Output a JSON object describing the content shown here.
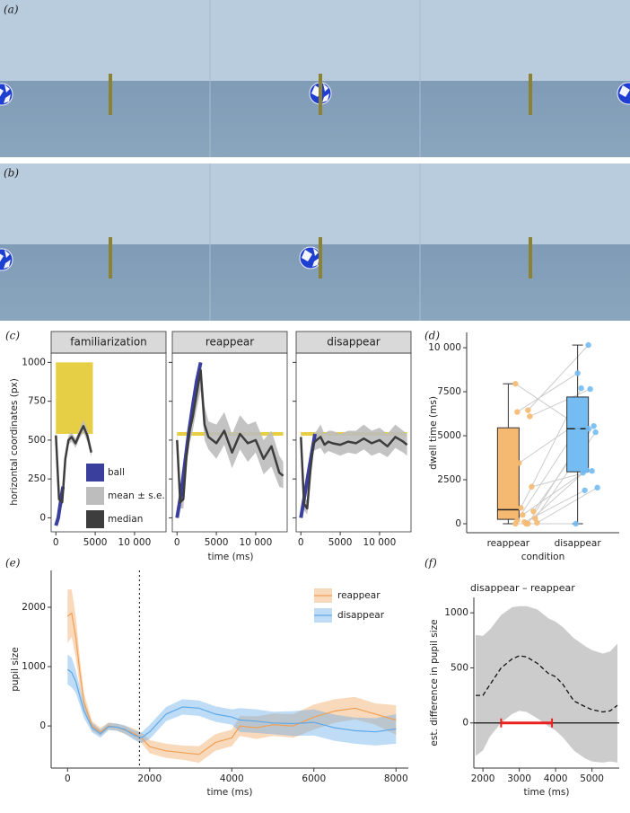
{
  "figure": {
    "panel_labels": [
      "(a)",
      "(b)",
      "(c)",
      "(d)",
      "(e)",
      "(f)"
    ]
  },
  "chart_data": [
    {
      "type": "facet-line",
      "ylabel": "horizontal coordinates (px)",
      "xlabel": "time (ms)",
      "xlim": [
        -600,
        14000
      ],
      "ylim": [
        -90,
        1060
      ],
      "xticks": [
        0,
        5000,
        {
          "value": 10000,
          "label": "10 000"
        }
      ],
      "yticks": [
        0,
        250,
        500,
        750,
        1000
      ],
      "series": [
        {
          "name": "ball",
          "color": "#3a3f9e"
        },
        {
          "name": "mean ± s.e.",
          "color": "#bdbdbd"
        },
        {
          "name": "median",
          "color": "#3d3d3d"
        }
      ],
      "legend": "bottom-right",
      "occluder_color": "#e6cf45",
      "facets": [
        {
          "title": "familiarization",
          "x": [
            0,
            400,
            800,
            1200,
            1600,
            2000,
            2500,
            3000,
            3500,
            4000,
            4500
          ],
          "median": [
            530,
            120,
            100,
            380,
            500,
            520,
            480,
            540,
            590,
            530,
            420
          ],
          "lower": [
            500,
            90,
            70,
            340,
            470,
            490,
            450,
            510,
            550,
            490,
            390
          ],
          "upper": [
            560,
            150,
            130,
            420,
            530,
            550,
            510,
            570,
            630,
            570,
            450
          ],
          "ball": {
            "x": [
              0,
              300,
              600,
              900
            ],
            "values": [
              -50,
              0,
              100,
              200
            ]
          },
          "occluder": {
            "x": [
              0,
              4700
            ],
            "y": [
              540,
              1000
            ]
          }
        },
        {
          "title": "reappear",
          "x": [
            0,
            400,
            800,
            1200,
            1600,
            2000,
            2500,
            3000,
            3500,
            4000,
            5000,
            6000,
            7000,
            8000,
            9000,
            10000,
            11000,
            12000,
            13000,
            13500
          ],
          "median": [
            500,
            100,
            120,
            400,
            560,
            650,
            800,
            950,
            600,
            520,
            480,
            560,
            420,
            540,
            480,
            500,
            380,
            460,
            290,
            270
          ],
          "lower": [
            440,
            60,
            60,
            330,
            480,
            560,
            700,
            820,
            500,
            440,
            380,
            470,
            320,
            440,
            360,
            420,
            280,
            330,
            200,
            190
          ],
          "upper": [
            560,
            160,
            180,
            470,
            640,
            740,
            900,
            1000,
            720,
            620,
            600,
            680,
            540,
            660,
            600,
            620,
            500,
            560,
            400,
            360
          ],
          "ball": {
            "x": [
              0,
              500,
              1000,
              1500,
              2000,
              2500,
              3000
            ],
            "values": [
              0,
              150,
              350,
              550,
              720,
              880,
              1000
            ]
          },
          "occluder": {
            "x": [
              0,
              13500
            ],
            "y": [
              540,
              540
            ]
          }
        },
        {
          "title": "disappear",
          "x": [
            0,
            400,
            800,
            1200,
            1600,
            2000,
            2500,
            3000,
            3500,
            4000,
            5000,
            6000,
            7000,
            8000,
            9000,
            10000,
            11000,
            12000,
            13000,
            13500
          ],
          "median": [
            520,
            90,
            60,
            300,
            480,
            500,
            520,
            470,
            490,
            480,
            470,
            490,
            480,
            510,
            480,
            500,
            460,
            520,
            490,
            470
          ],
          "lower": [
            470,
            50,
            20,
            250,
            430,
            440,
            450,
            410,
            430,
            420,
            400,
            420,
            410,
            440,
            400,
            420,
            390,
            450,
            420,
            400
          ],
          "upper": [
            570,
            140,
            110,
            360,
            540,
            560,
            600,
            540,
            560,
            560,
            540,
            560,
            560,
            600,
            560,
            580,
            540,
            600,
            560,
            540
          ],
          "ball": {
            "x": [
              0,
              500,
              1000,
              1500,
              1800
            ],
            "values": [
              0,
              150,
              300,
              450,
              540
            ]
          },
          "occluder": {
            "x": [
              0,
              13500
            ],
            "y": [
              540,
              540
            ]
          }
        }
      ]
    },
    {
      "type": "box",
      "ylabel": "dwell time (ms)",
      "xlabel": "condition",
      "categories": [
        "reappear",
        "disappear"
      ],
      "colors": [
        "#f5b971",
        "#74bcf2"
      ],
      "ylim": [
        -510,
        10870
      ],
      "yticks": [
        0,
        2500,
        5000,
        7500,
        {
          "value": 10000,
          "label": "10 000"
        }
      ],
      "boxes": [
        {
          "min": 0,
          "q1": 250,
          "median": 800,
          "q3": 5450,
          "max": 7950
        },
        {
          "min": 0,
          "q1": 2950,
          "median": 5400,
          "q3": 7200,
          "max": 10150
        }
      ],
      "points": [
        [
          7950,
          6450,
          6350,
          6100,
          3450,
          2100,
          900,
          700,
          500,
          300,
          100,
          50,
          0,
          0,
          0,
          200
        ],
        [
          5650,
          10150,
          8550,
          7650,
          5800,
          3000,
          7700,
          5550,
          2900,
          5200,
          1900,
          2050,
          3050,
          0,
          5400,
          5450
        ]
      ]
    },
    {
      "type": "ribbon-line",
      "ylabel": "pupil size",
      "xlabel": "time (ms)",
      "xlim": [
        -400,
        8300
      ],
      "ylim": [
        -710,
        2620
      ],
      "xticks": [
        0,
        2000,
        4000,
        6000,
        8000
      ],
      "yticks": [
        0,
        1000,
        2000
      ],
      "vline": 1750,
      "legend": "top-right",
      "x": [
        0,
        100,
        200,
        300,
        400,
        600,
        800,
        1000,
        1200,
        1400,
        1600,
        1800,
        2000,
        2400,
        2800,
        3200,
        3600,
        4000,
        4200,
        4600,
        5000,
        5500,
        6000,
        6500,
        7000,
        7500,
        8000
      ],
      "series": [
        {
          "name": "reappear",
          "color": "#f0a055",
          "values": [
            1850,
            1900,
            1500,
            900,
            400,
            0,
            -100,
            0,
            -20,
            -70,
            -120,
            -200,
            -350,
            -420,
            -450,
            -480,
            -280,
            -200,
            0,
            -30,
            20,
            0,
            150,
            250,
            300,
            200,
            100
          ],
          "lower": [
            1400,
            1500,
            1150,
            650,
            250,
            -80,
            -170,
            -60,
            -80,
            -140,
            -200,
            -290,
            -460,
            -540,
            -570,
            -620,
            -420,
            -340,
            -170,
            -220,
            -170,
            -200,
            -60,
            50,
            110,
            20,
            -150
          ],
          "upper": [
            2300,
            2300,
            1850,
            1150,
            550,
            80,
            -30,
            60,
            40,
            0,
            -40,
            -110,
            -240,
            -300,
            -330,
            -340,
            -140,
            -60,
            170,
            160,
            210,
            200,
            360,
            450,
            490,
            380,
            350
          ]
        },
        {
          "name": "disappear",
          "color": "#5fa8e8",
          "values": [
            950,
            900,
            750,
            500,
            250,
            -30,
            -130,
            -10,
            -20,
            -60,
            -150,
            -200,
            -100,
            200,
            320,
            300,
            200,
            150,
            100,
            80,
            50,
            40,
            60,
            -30,
            -80,
            -100,
            -50
          ],
          "lower": [
            700,
            650,
            560,
            350,
            130,
            -110,
            -200,
            -70,
            -80,
            -130,
            -230,
            -290,
            -220,
            80,
            190,
            170,
            70,
            20,
            -100,
            -120,
            -140,
            -170,
            -160,
            -250,
            -300,
            -330,
            -300
          ],
          "upper": [
            1200,
            1150,
            940,
            650,
            370,
            50,
            -60,
            50,
            40,
            10,
            -70,
            -110,
            20,
            320,
            450,
            430,
            330,
            280,
            300,
            280,
            240,
            250,
            280,
            190,
            140,
            130,
            200
          ]
        }
      ]
    },
    {
      "type": "ribbon-line",
      "title": "disappear – reappear",
      "ylabel": "est. difference in pupil size",
      "xlabel": "time (ms)",
      "xlim": [
        1750,
        5750
      ],
      "ylim": [
        -410,
        1140
      ],
      "xticks": [
        2000,
        3000,
        4000,
        5000
      ],
      "yticks": [
        0,
        500,
        1000
      ],
      "hline": 0,
      "dashed": true,
      "x": [
        1800,
        2000,
        2200,
        2500,
        2800,
        3000,
        3200,
        3500,
        3800,
        4000,
        4200,
        4500,
        4800,
        5000,
        5300,
        5500,
        5700
      ],
      "series": [
        {
          "color": "#111111",
          "band_color": "#cccccc",
          "values": [
            250,
            250,
            350,
            500,
            580,
            610,
            600,
            540,
            450,
            420,
            350,
            200,
            150,
            120,
            100,
            110,
            160
          ],
          "lower": [
            -300,
            -250,
            -120,
            0,
            80,
            110,
            100,
            40,
            -30,
            -70,
            -130,
            -250,
            -320,
            -350,
            -360,
            -350,
            -360
          ],
          "upper": [
            800,
            790,
            850,
            980,
            1050,
            1060,
            1060,
            1030,
            950,
            920,
            870,
            770,
            700,
            660,
            630,
            650,
            720
          ]
        }
      ],
      "significant": {
        "x": [
          2500,
          3900
        ],
        "color": "#e8201e"
      }
    }
  ]
}
